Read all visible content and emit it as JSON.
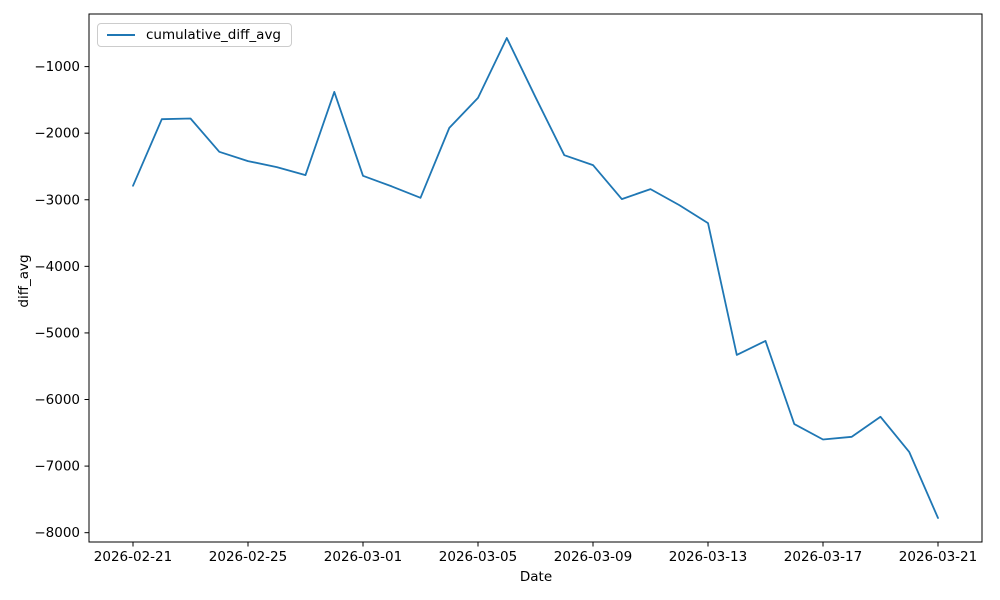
{
  "chart_data": {
    "type": "line",
    "title": "",
    "xlabel": "Date",
    "ylabel": "diff_avg",
    "x": [
      "2026-02-21",
      "2026-02-22",
      "2026-02-23",
      "2026-02-24",
      "2026-02-25",
      "2026-02-26",
      "2026-02-27",
      "2026-02-28",
      "2026-03-01",
      "2026-03-02",
      "2026-03-03",
      "2026-03-04",
      "2026-03-05",
      "2026-03-06",
      "2026-03-07",
      "2026-03-08",
      "2026-03-09",
      "2026-03-10",
      "2026-03-11",
      "2026-03-12",
      "2026-03-13",
      "2026-03-14",
      "2026-03-15",
      "2026-03-16",
      "2026-03-17",
      "2026-03-18",
      "2026-03-19",
      "2026-03-20",
      "2026-03-21"
    ],
    "series": [
      {
        "name": "cumulative_diff_avg",
        "color": "#1f77b4",
        "values": [
          -2790,
          -1790,
          -1780,
          -2280,
          -2420,
          -2510,
          -2630,
          -1380,
          -2640,
          -2800,
          -2970,
          -1920,
          -1470,
          -570,
          -1460,
          -2330,
          -2480,
          -2990,
          -2840,
          -3080,
          -3350,
          -5330,
          -5120,
          -6370,
          -6600,
          -6560,
          -6260,
          -6790,
          -7780
        ]
      }
    ],
    "xtick_labels": [
      "2026-02-21",
      "2026-02-25",
      "2026-03-01",
      "2026-03-05",
      "2026-03-09",
      "2026-03-13",
      "2026-03-17",
      "2026-03-21"
    ],
    "ytick_values": [
      -1000,
      -2000,
      -3000,
      -4000,
      -5000,
      -6000,
      -7000,
      -8000
    ],
    "ytick_labels": [
      "−1000",
      "−2000",
      "−3000",
      "−4000",
      "−5000",
      "−6000",
      "−7000",
      "−8000"
    ],
    "ylim": [
      -8140,
      -210
    ],
    "grid": false,
    "legend": {
      "position": "upper left",
      "entries": [
        "cumulative_diff_avg"
      ]
    },
    "colors": {
      "line": "#1f77b4",
      "axis": "#000000",
      "background": "#ffffff",
      "legend_border": "#cccccc"
    }
  }
}
